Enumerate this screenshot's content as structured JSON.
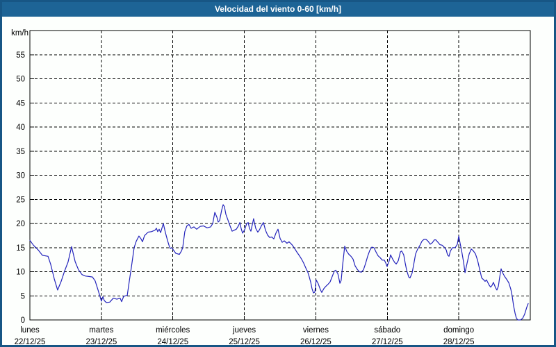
{
  "window": {
    "title": "Velocidad del viento 0-60 [km/h]"
  },
  "colors": {
    "titlebar_bg": "#1d6496",
    "frame_border": "#175685",
    "page_bg": "#fdfffd",
    "line": "#2222bb",
    "grid": "#000000",
    "title_text": "#ffffff"
  },
  "chart_data": {
    "type": "line",
    "title": "Velocidad del viento 0-60 [km/h]",
    "ylabel": "km/h",
    "xlabel": "",
    "ylim": [
      0,
      60
    ],
    "y_ticks": [
      0,
      5,
      10,
      15,
      20,
      25,
      30,
      35,
      40,
      45,
      50,
      55
    ],
    "x_hours_total": 168,
    "day_boundaries_hours": [
      24,
      48,
      72,
      96,
      120,
      144
    ],
    "grid": "dashed",
    "legend": "none",
    "categories": [
      {
        "day": "lunes",
        "date": "22/12/25"
      },
      {
        "day": "martes",
        "date": "23/12/25"
      },
      {
        "day": "miércoles",
        "date": "24/12/25"
      },
      {
        "day": "jueves",
        "date": "25/12/25"
      },
      {
        "day": "viernes",
        "date": "26/12/25"
      },
      {
        "day": "sábado",
        "date": "27/12/25"
      },
      {
        "day": "domingo",
        "date": "28/12/25"
      }
    ],
    "series": [
      {
        "name": "velocidad del viento (km/h)",
        "points": [
          [
            0,
            16.5
          ],
          [
            1.2,
            15.5
          ],
          [
            2.8,
            14.5
          ],
          [
            4.2,
            13.4
          ],
          [
            6.1,
            13.2
          ],
          [
            7,
            11.5
          ],
          [
            8.2,
            8.5
          ],
          [
            9.3,
            6.2
          ],
          [
            10.5,
            8
          ],
          [
            11.7,
            10.2
          ],
          [
            12.8,
            12
          ],
          [
            14,
            15.2
          ],
          [
            15.2,
            12.1
          ],
          [
            16.3,
            10.4
          ],
          [
            17.5,
            9.4
          ],
          [
            18.7,
            9.1
          ],
          [
            19.8,
            9
          ],
          [
            21,
            8.9
          ],
          [
            21.9,
            8.1
          ],
          [
            22.9,
            6.2
          ],
          [
            24,
            3.9
          ],
          [
            24.5,
            4.8
          ],
          [
            25,
            4
          ],
          [
            25.7,
            3.6
          ],
          [
            26.8,
            3.7
          ],
          [
            28,
            4.5
          ],
          [
            29.2,
            4.3
          ],
          [
            30.3,
            4.5
          ],
          [
            30.8,
            3.8
          ],
          [
            31.5,
            4.9
          ],
          [
            32.7,
            5.1
          ],
          [
            33.4,
            8.1
          ],
          [
            34.1,
            11
          ],
          [
            35,
            15
          ],
          [
            35.7,
            16.3
          ],
          [
            36.6,
            17.4
          ],
          [
            37.3,
            16.8
          ],
          [
            37.8,
            16.2
          ],
          [
            38.5,
            17.5
          ],
          [
            39.7,
            18.2
          ],
          [
            40.8,
            18.3
          ],
          [
            42,
            18.6
          ],
          [
            42.5,
            19
          ],
          [
            42.9,
            18.3
          ],
          [
            43.4,
            18.8
          ],
          [
            43.9,
            18.1
          ],
          [
            44.8,
            20
          ],
          [
            45.5,
            18.1
          ],
          [
            46.2,
            16.5
          ],
          [
            46.7,
            15.5
          ],
          [
            47.1,
            14.8
          ],
          [
            47.6,
            15
          ],
          [
            48.3,
            14.4
          ],
          [
            49,
            13.8
          ],
          [
            50.2,
            13.6
          ],
          [
            50.9,
            14.3
          ],
          [
            51.3,
            15
          ],
          [
            52,
            18.3
          ],
          [
            52.7,
            19.5
          ],
          [
            53.4,
            19.8
          ],
          [
            54.1,
            19
          ],
          [
            55.1,
            19.3
          ],
          [
            56,
            18.8
          ],
          [
            57.2,
            19.4
          ],
          [
            58.3,
            19.5
          ],
          [
            59.5,
            19.1
          ],
          [
            60.7,
            19.3
          ],
          [
            61.4,
            20
          ],
          [
            62.1,
            22.3
          ],
          [
            62.8,
            21.3
          ],
          [
            63.2,
            20.3
          ],
          [
            63.7,
            20.6
          ],
          [
            64.4,
            22.8
          ],
          [
            64.9,
            23.9
          ],
          [
            65.3,
            23.5
          ],
          [
            65.8,
            21.9
          ],
          [
            66.5,
            20.7
          ],
          [
            67.2,
            19.5
          ],
          [
            67.9,
            18.4
          ],
          [
            68.6,
            18.6
          ],
          [
            69.3,
            18.8
          ],
          [
            70,
            19.5
          ],
          [
            70.5,
            20.2
          ],
          [
            70.9,
            19
          ],
          [
            71.4,
            18
          ],
          [
            72.1,
            18.7
          ],
          [
            72.8,
            20
          ],
          [
            73.3,
            20.2
          ],
          [
            73.7,
            19
          ],
          [
            74.2,
            18.4
          ],
          [
            75.1,
            21
          ],
          [
            75.8,
            19
          ],
          [
            76.5,
            18.2
          ],
          [
            77,
            18.6
          ],
          [
            77.7,
            19.5
          ],
          [
            78.4,
            20.2
          ],
          [
            79.1,
            18.6
          ],
          [
            79.8,
            17.6
          ],
          [
            80.5,
            17.1
          ],
          [
            81.2,
            17.2
          ],
          [
            81.9,
            16.8
          ],
          [
            82.6,
            18
          ],
          [
            83.3,
            18.8
          ],
          [
            84,
            16.9
          ],
          [
            84.7,
            16.1
          ],
          [
            85.4,
            16.4
          ],
          [
            86.3,
            15.9
          ],
          [
            87,
            16.2
          ],
          [
            88,
            15.6
          ],
          [
            88.7,
            15
          ],
          [
            89.6,
            14.1
          ],
          [
            90.5,
            13.3
          ],
          [
            91.2,
            12.6
          ],
          [
            91.9,
            11.8
          ],
          [
            92.6,
            10.8
          ],
          [
            93.3,
            9.9
          ],
          [
            93.8,
            8.9
          ],
          [
            94.3,
            7.8
          ],
          [
            94.7,
            6.5
          ],
          [
            95.2,
            5.6
          ],
          [
            95.7,
            5.8
          ],
          [
            96.1,
            8.3
          ],
          [
            96.8,
            7.5
          ],
          [
            97.5,
            6.3
          ],
          [
            98,
            5.7
          ],
          [
            98.7,
            6.5
          ],
          [
            99.4,
            7
          ],
          [
            100.1,
            7.4
          ],
          [
            100.8,
            7.9
          ],
          [
            101.5,
            9
          ],
          [
            102.2,
            10.1
          ],
          [
            102.7,
            10.3
          ],
          [
            103.4,
            9.6
          ],
          [
            104.1,
            7.6
          ],
          [
            104.5,
            8.2
          ],
          [
            105,
            11.4
          ],
          [
            105.7,
            15.3
          ],
          [
            106.4,
            14.2
          ],
          [
            107.1,
            13.6
          ],
          [
            107.8,
            13.2
          ],
          [
            108.5,
            12.6
          ],
          [
            109.2,
            11.2
          ],
          [
            109.9,
            10.5
          ],
          [
            110.6,
            10
          ],
          [
            111.3,
            9.9
          ],
          [
            112,
            10.4
          ],
          [
            112.7,
            11.7
          ],
          [
            113.4,
            13.2
          ],
          [
            114.1,
            14.4
          ],
          [
            114.8,
            15.1
          ],
          [
            115.5,
            15
          ],
          [
            116.2,
            14.1
          ],
          [
            116.9,
            13.3
          ],
          [
            117.6,
            12.9
          ],
          [
            118.3,
            12.4
          ],
          [
            119,
            12.4
          ],
          [
            119.5,
            11.8
          ],
          [
            119.9,
            11.1
          ],
          [
            120.6,
            12.2
          ],
          [
            121.1,
            13.5
          ],
          [
            121.8,
            12.6
          ],
          [
            122.5,
            11.9
          ],
          [
            123,
            11.6
          ],
          [
            123.7,
            12.3
          ],
          [
            124.4,
            14.1
          ],
          [
            124.8,
            14.3
          ],
          [
            125.5,
            13.5
          ],
          [
            126,
            11.8
          ],
          [
            126.5,
            10.3
          ],
          [
            127.2,
            8.9
          ],
          [
            127.6,
            8.7
          ],
          [
            128.3,
            9.7
          ],
          [
            128.8,
            11.3
          ],
          [
            129.5,
            13.7
          ],
          [
            130.2,
            14.7
          ],
          [
            130.9,
            15.4
          ],
          [
            131.6,
            16.3
          ],
          [
            132.3,
            16.7
          ],
          [
            133,
            16.7
          ],
          [
            133.7,
            16.3
          ],
          [
            134.4,
            15.7
          ],
          [
            135.1,
            16
          ],
          [
            135.8,
            16.6
          ],
          [
            136.3,
            16.6
          ],
          [
            137,
            16.1
          ],
          [
            137.7,
            15.6
          ],
          [
            138.4,
            15.5
          ],
          [
            139.1,
            15.1
          ],
          [
            139.8,
            14.5
          ],
          [
            140.2,
            13.5
          ],
          [
            140.7,
            13.2
          ],
          [
            141.2,
            14.3
          ],
          [
            141.9,
            15
          ],
          [
            142.8,
            15
          ],
          [
            143.5,
            15.7
          ],
          [
            144,
            17.4
          ],
          [
            144.4,
            16
          ],
          [
            144.9,
            14.5
          ],
          [
            145.6,
            12
          ],
          [
            146.1,
            9.8
          ],
          [
            146.8,
            11.8
          ],
          [
            147.5,
            13.7
          ],
          [
            148.2,
            14.7
          ],
          [
            148.9,
            14.3
          ],
          [
            149.6,
            13.7
          ],
          [
            150.3,
            12.4
          ],
          [
            151,
            10.5
          ],
          [
            151.7,
            8.7
          ],
          [
            152.4,
            8.3
          ],
          [
            152.8,
            8
          ],
          [
            153.3,
            8.3
          ],
          [
            153.8,
            7.7
          ],
          [
            154.2,
            7.2
          ],
          [
            154.7,
            6.8
          ],
          [
            155.2,
            7.2
          ],
          [
            155.6,
            7.8
          ],
          [
            156.3,
            6.7
          ],
          [
            156.8,
            6.2
          ],
          [
            157.3,
            7
          ],
          [
            157.7,
            8.8
          ],
          [
            158.2,
            10.6
          ],
          [
            158.7,
            9.8
          ],
          [
            159.4,
            9
          ],
          [
            160.1,
            8.4
          ],
          [
            160.8,
            7.7
          ],
          [
            161.5,
            6.3
          ],
          [
            161.9,
            5
          ],
          [
            162.4,
            2.9
          ],
          [
            162.9,
            1.4
          ],
          [
            163.3,
            0.4
          ],
          [
            163.8,
            0
          ],
          [
            164.7,
            0
          ],
          [
            165.4,
            0.3
          ],
          [
            166.1,
            1.2
          ],
          [
            166.8,
            2.6
          ],
          [
            167.3,
            3.4
          ]
        ]
      }
    ]
  }
}
